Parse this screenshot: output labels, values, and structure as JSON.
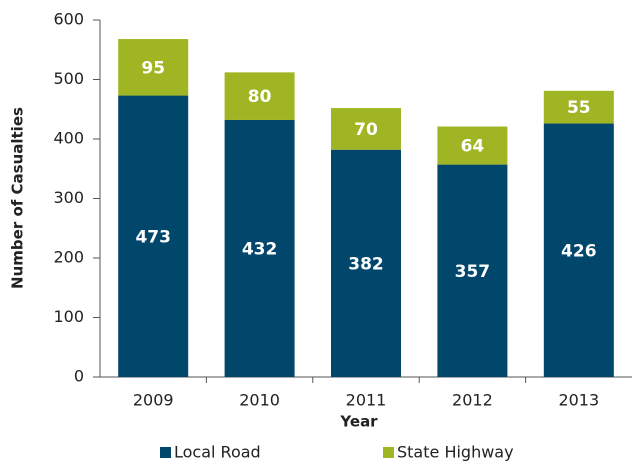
{
  "chart_data": {
    "type": "stacked_bar",
    "x_label": "Year",
    "y_label": "Number of Casualties",
    "categories": [
      "2009",
      "2010",
      "2011",
      "2012",
      "2013"
    ],
    "series": [
      {
        "name": "Local Road",
        "color": "#00476b",
        "values": [
          473,
          432,
          382,
          357,
          426
        ]
      },
      {
        "name": "State Highway",
        "color": "#a0b524",
        "values": [
          95,
          80,
          70,
          64,
          55
        ]
      }
    ],
    "ylim": [
      0,
      600
    ],
    "yticks": [
      0,
      100,
      200,
      300,
      400,
      500,
      600
    ],
    "grid": false,
    "legend": "bottom"
  }
}
